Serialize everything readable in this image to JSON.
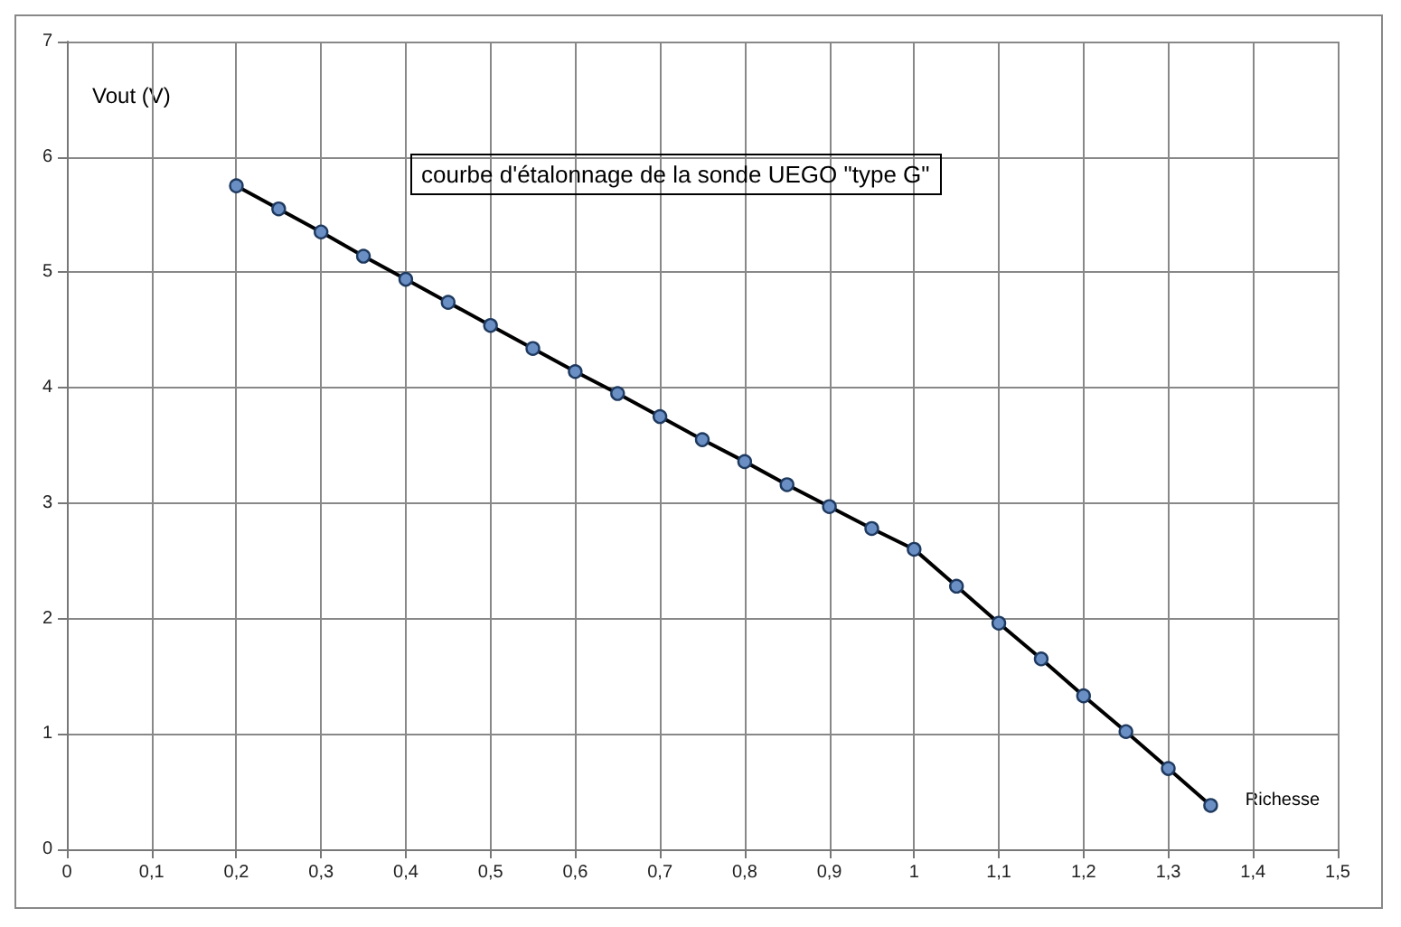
{
  "chart_data": {
    "type": "line",
    "title": "courbe d'étalonnage de la sonde UEGO \"type G\"",
    "xlabel": "Richesse",
    "ylabel": "Vout (V)",
    "x": [
      0.2,
      0.25,
      0.3,
      0.35,
      0.4,
      0.45,
      0.5,
      0.55,
      0.6,
      0.65,
      0.7,
      0.75,
      0.8,
      0.85,
      0.9,
      0.95,
      1.0,
      1.05,
      1.1,
      1.15,
      1.2,
      1.25,
      1.3,
      1.35
    ],
    "series": [
      {
        "color": "#000000",
        "values": [
          5.75,
          5.55,
          5.35,
          5.14,
          4.94,
          4.74,
          4.54,
          4.34,
          4.14,
          3.95,
          3.75,
          3.55,
          3.36,
          3.16,
          2.97,
          2.78,
          2.6,
          2.28,
          1.96,
          1.65,
          1.33,
          1.02,
          0.7,
          0.38
        ]
      }
    ],
    "xlim": [
      0,
      1.5
    ],
    "xticks": [
      0,
      {
        "value": 0.1,
        "label": "0,1"
      },
      {
        "value": 0.2,
        "label": "0,2"
      },
      {
        "value": 0.3,
        "label": "0,3"
      },
      {
        "value": 0.4,
        "label": "0,4"
      },
      {
        "value": 0.5,
        "label": "0,5"
      },
      {
        "value": 0.6,
        "label": "0,6"
      },
      {
        "value": 0.7,
        "label": "0,7"
      },
      {
        "value": 0.8,
        "label": "0,8"
      },
      {
        "value": 0.9,
        "label": "0,9"
      },
      1,
      {
        "value": 1.1,
        "label": "1,1"
      },
      {
        "value": 1.2,
        "label": "1,2"
      },
      {
        "value": 1.3,
        "label": "1,3"
      },
      {
        "value": 1.4,
        "label": "1,4"
      },
      {
        "value": 1.5,
        "label": "1,5"
      }
    ],
    "ylim": [
      0,
      7
    ],
    "yticks": [
      0,
      1,
      2,
      3,
      4,
      5,
      6,
      7
    ],
    "grid": true,
    "marker": "circle",
    "line_style": "solid"
  }
}
